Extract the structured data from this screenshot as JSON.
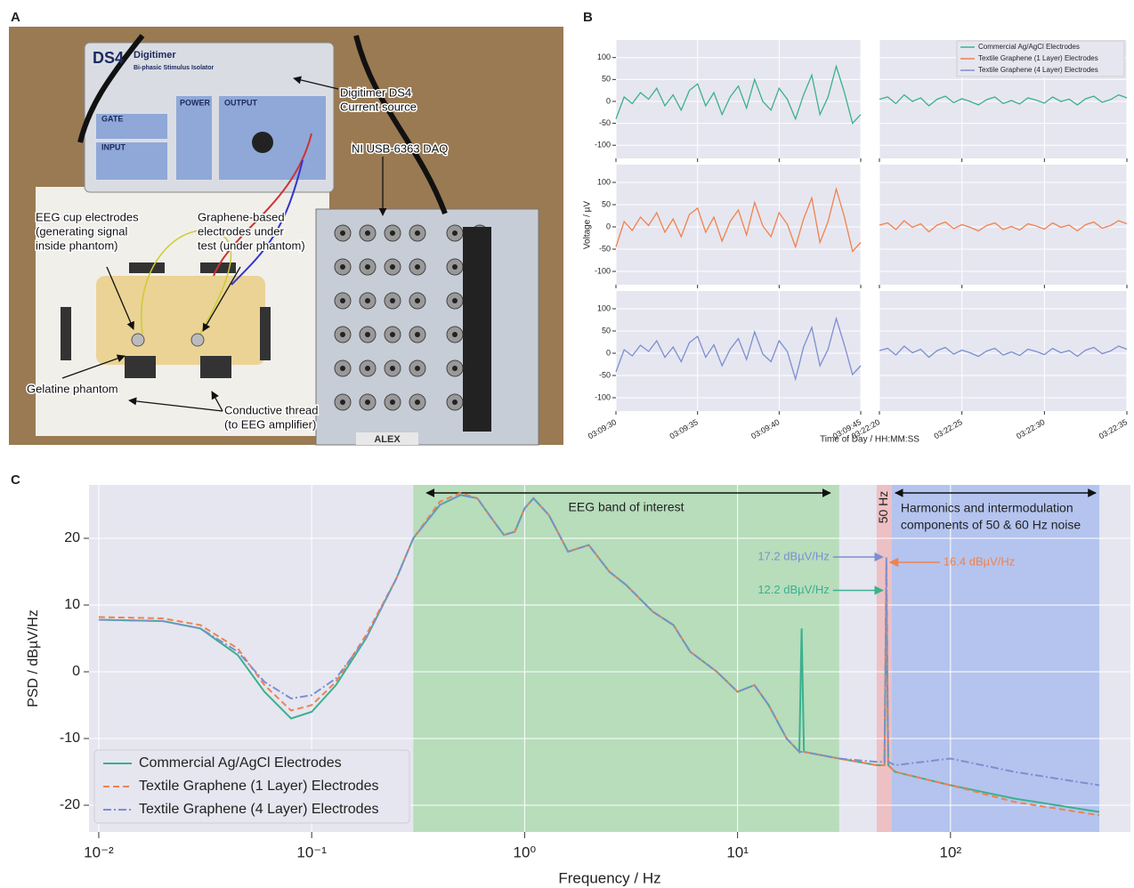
{
  "panel_labels": [
    "A",
    "B",
    "C"
  ],
  "photo": {
    "device_labels": [
      "DS4",
      "Digitimer",
      "Bi-phasic Stimulus Isolator",
      "GATE",
      "POWER",
      "OUTPUT",
      "INPUT",
      "ALEX"
    ],
    "annotations": [
      [
        "Digitimer DS4",
        "Current source"
      ],
      [
        "NI USB-6363 DAQ"
      ],
      [
        "EEG cup electrodes",
        "(generating signal",
        "inside phantom)"
      ],
      [
        "Graphene-based",
        "electrodes under",
        "test (under phantom)"
      ],
      [
        "Gelatine phantom"
      ],
      [
        "Conductive thread",
        "(to EEG amplifier)"
      ]
    ]
  },
  "chart_data": [
    {
      "type": "line",
      "ylabel": "Voltage / µV",
      "xlabel": "Time of Day / HH:MM:SS",
      "ylim": [
        -130,
        140
      ],
      "yticks": [
        -100,
        -50,
        0,
        50,
        100
      ],
      "grid": true,
      "legend": "upper right",
      "columns": [
        {
          "xlim": [
            0,
            15
          ],
          "xticks": [
            {
              "value": 0,
              "label": "03:09:30"
            },
            {
              "value": 5,
              "label": "03:09:35"
            },
            {
              "value": 10,
              "label": "03:09:40"
            },
            {
              "value": 15,
              "label": "03:09:45"
            }
          ],
          "x": [
            0,
            0.5,
            1,
            1.5,
            2,
            2.5,
            3,
            3.5,
            4,
            4.5,
            5,
            5.5,
            6,
            6.5,
            7,
            7.5,
            8,
            8.5,
            9,
            9.5,
            10,
            10.5,
            11,
            11.5,
            12,
            12.5,
            13,
            13.5,
            14,
            14.5,
            15
          ]
        },
        {
          "xlim": [
            0,
            15
          ],
          "xticks": [
            {
              "value": 0,
              "label": "03:22:20"
            },
            {
              "value": 5,
              "label": "03:22:25"
            },
            {
              "value": 10,
              "label": "03:22:30"
            },
            {
              "value": 15,
              "label": "03:22:35"
            }
          ],
          "x": [
            0,
            0.5,
            1,
            1.5,
            2,
            2.5,
            3,
            3.5,
            4,
            4.5,
            5,
            5.5,
            6,
            6.5,
            7,
            7.5,
            8,
            8.5,
            9,
            9.5,
            10,
            10.5,
            11,
            11.5,
            12,
            12.5,
            13,
            13.5,
            14,
            14.5,
            15
          ]
        }
      ],
      "series": [
        {
          "name": "Commercial Ag/AgCl Electrodes",
          "color": "#3bb08f",
          "values": [
            [
              -40,
              10,
              -5,
              20,
              5,
              30,
              -10,
              15,
              -20,
              25,
              40,
              -10,
              20,
              -30,
              10,
              35,
              -15,
              50,
              0,
              -20,
              30,
              5,
              -40,
              15,
              60,
              -30,
              10,
              80,
              20,
              -50,
              -30
            ],
            [
              5,
              10,
              -5,
              15,
              0,
              8,
              -10,
              5,
              12,
              -3,
              6,
              0,
              -8,
              4,
              10,
              -5,
              2,
              -6,
              8,
              3,
              -4,
              10,
              0,
              5,
              -8,
              6,
              12,
              -2,
              4,
              15,
              8
            ]
          ]
        },
        {
          "name": "Textile Graphene (1 Layer) Electrodes",
          "color": "#f0824d",
          "values": [
            [
              -45,
              12,
              -8,
              22,
              3,
              32,
              -12,
              18,
              -22,
              28,
              42,
              -12,
              22,
              -32,
              12,
              38,
              -18,
              55,
              2,
              -22,
              32,
              6,
              -45,
              18,
              65,
              -35,
              12,
              85,
              22,
              -55,
              -35
            ],
            [
              4,
              9,
              -6,
              14,
              -1,
              7,
              -11,
              4,
              11,
              -4,
              5,
              -1,
              -9,
              3,
              9,
              -6,
              1,
              -7,
              7,
              2,
              -5,
              9,
              -1,
              4,
              -9,
              5,
              11,
              -3,
              3,
              14,
              7
            ]
          ]
        },
        {
          "name": "Textile Graphene (4 Layer) Electrodes",
          "color": "#7b8fd0",
          "values": [
            [
              -42,
              8,
              -6,
              18,
              4,
              28,
              -9,
              14,
              -19,
              24,
              38,
              -9,
              19,
              -28,
              9,
              33,
              -14,
              48,
              -2,
              -19,
              28,
              4,
              -58,
              14,
              58,
              -28,
              9,
              78,
              18,
              -48,
              -28
            ],
            [
              6,
              11,
              -4,
              16,
              1,
              9,
              -9,
              6,
              13,
              -2,
              7,
              1,
              -7,
              5,
              11,
              -4,
              3,
              -5,
              9,
              4,
              -3,
              11,
              1,
              6,
              -7,
              7,
              13,
              -1,
              5,
              16,
              9
            ]
          ]
        }
      ]
    },
    {
      "type": "line",
      "log_x": true,
      "xlim": [
        0.009,
        700
      ],
      "xticks": [
        {
          "value": 0.01,
          "label": "10⁻²"
        },
        {
          "value": 0.1,
          "label": "10⁻¹"
        },
        {
          "value": 1,
          "label": "10⁰"
        },
        {
          "value": 10,
          "label": "10¹"
        },
        {
          "value": 100,
          "label": "10²"
        }
      ],
      "ylim": [
        -24,
        28
      ],
      "yticks": [
        -20,
        -10,
        0,
        10,
        20
      ],
      "xlabel": "Frequency / Hz",
      "ylabel": "PSD / dBµV/Hz",
      "grid": true,
      "legend": "lower left",
      "bands": [
        {
          "x": [
            0.3,
            30
          ],
          "color": "#8fd68f",
          "label": [
            "EEG band of interest"
          ]
        },
        {
          "x": [
            45,
            53
          ],
          "color": "#f2a0a0",
          "label": [
            "50 Hz"
          ]
        },
        {
          "x": [
            53,
            500
          ],
          "color": "#8aa8ee",
          "label": [
            "Harmonics and intermodulation",
            "components of 50 & 60 Hz noise"
          ]
        }
      ],
      "annotations": [
        {
          "text": "17.2 dBµV/Hz",
          "series": 2,
          "index": 38
        },
        {
          "text": "16.4 dBµV/Hz",
          "series": 1,
          "index": 38
        },
        {
          "text": "12.2 dBµV/Hz",
          "series": 0,
          "index": 38
        }
      ],
      "x": [
        0.01,
        0.02,
        0.03,
        0.045,
        0.06,
        0.08,
        0.1,
        0.13,
        0.18,
        0.25,
        0.3,
        0.4,
        0.5,
        0.6,
        0.7,
        0.8,
        0.9,
        1,
        1.1,
        1.3,
        1.6,
        2,
        2.5,
        3,
        4,
        5,
        6,
        8,
        10,
        12,
        14,
        17,
        19.5,
        20,
        20.5,
        30,
        45,
        49,
        50,
        51,
        55,
        100,
        200,
        500
      ],
      "series": [
        {
          "name": "Commercial Ag/AgCl Electrodes",
          "color": "#3bb08f",
          "dash": "solid",
          "values": [
            7.8,
            7.6,
            6.5,
            2.5,
            -3,
            -7,
            -6,
            -2,
            5,
            14,
            20,
            25,
            26.5,
            26,
            23,
            20.5,
            21,
            24.5,
            26,
            23.5,
            18,
            19,
            15,
            13,
            9,
            7,
            3,
            0,
            -3,
            -2,
            -5,
            -10,
            -12,
            6.5,
            -12,
            -13,
            -14,
            -14,
            12.2,
            -14,
            -15,
            -17,
            -19,
            -21
          ]
        },
        {
          "name": "Textile Graphene (1 Layer) Electrodes",
          "color": "#f0824d",
          "dash": "dashed",
          "values": [
            8.2,
            8,
            7,
            3.5,
            -2,
            -5.8,
            -5,
            -1.5,
            5.5,
            14,
            20,
            25.5,
            26.8,
            26,
            23,
            20.5,
            21,
            24.5,
            26,
            23.5,
            18,
            19,
            15,
            13,
            9,
            7,
            3,
            0,
            -3,
            -2,
            -5,
            -10,
            -12,
            -12,
            -12,
            -13,
            -14,
            -14,
            16.4,
            -14,
            -15,
            -17,
            -19.5,
            -21.5
          ]
        },
        {
          "name": "Textile Graphene (4 Layer) Electrodes",
          "color": "#7b8fd0",
          "dash": "dashdot",
          "values": [
            7.8,
            7.6,
            6.5,
            3,
            -1.5,
            -4,
            -3.5,
            -1,
            5,
            14,
            20,
            25,
            26.5,
            26,
            23,
            20.5,
            21,
            24.5,
            26,
            23.5,
            18,
            19,
            15,
            13,
            9,
            7,
            3,
            0,
            -3,
            -2,
            -5,
            -10,
            -12,
            -12,
            -12,
            -13,
            -13.5,
            -13.5,
            17.2,
            -13.5,
            -14,
            -13,
            -15,
            -17
          ]
        }
      ]
    }
  ]
}
